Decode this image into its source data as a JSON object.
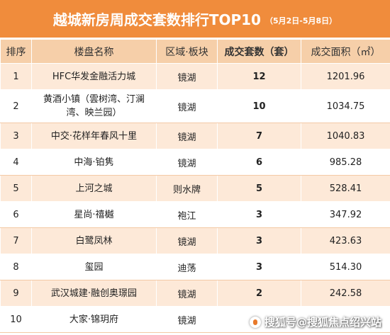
{
  "title": {
    "main": "越城新房周成交套数排行TOP10",
    "sub": "（5月2日-5月8日）"
  },
  "table": {
    "headers": [
      "排序",
      "楼盘名称",
      "区域·板块",
      "成交套数（套）",
      "成交面积（㎡）"
    ],
    "rows": [
      {
        "rank": "1",
        "name": "HFC华发金融活力城",
        "area_block": "镜湖",
        "units": "12",
        "area": "1201.96"
      },
      {
        "rank": "2",
        "name": "黄酒小镇（雲树湾、汀澜湾、映兰园）",
        "area_block": "镜湖",
        "units": "10",
        "area": "1034.75"
      },
      {
        "rank": "3",
        "name": "中交·花样年春风十里",
        "area_block": "镜湖",
        "units": "7",
        "area": "1040.83"
      },
      {
        "rank": "4",
        "name": "中海·铂隽",
        "area_block": "镜湖",
        "units": "6",
        "area": "985.28"
      },
      {
        "rank": "5",
        "name": "上河之城",
        "area_block": "则水牌",
        "units": "5",
        "area": "528.41"
      },
      {
        "rank": "6",
        "name": "星尚·禧樾",
        "area_block": "袍江",
        "units": "3",
        "area": "347.92"
      },
      {
        "rank": "7",
        "name": "白鹭凤林",
        "area_block": "镜湖",
        "units": "3",
        "area": "423.63"
      },
      {
        "rank": "8",
        "name": "玺园",
        "area_block": "迪荡",
        "units": "3",
        "area": "514.30"
      },
      {
        "rank": "9",
        "name": "武汉城建·融创奥璟园",
        "area_block": "镜湖",
        "units": "2",
        "area": "242.58"
      },
      {
        "rank": "10",
        "name": "大家·锦玥府",
        "area_block": "镜湖",
        "units": "",
        "area": ""
      }
    ]
  },
  "watermark": {
    "text": "搜狐号@搜狐焦点绍兴站",
    "icon": "sohu-logo-icon"
  },
  "colors": {
    "title_bg": "#f08c3c",
    "header_bg": "#f6cfa9",
    "row_odd_bg": "#fde9d8",
    "row_even_bg": "#ffffff"
  }
}
